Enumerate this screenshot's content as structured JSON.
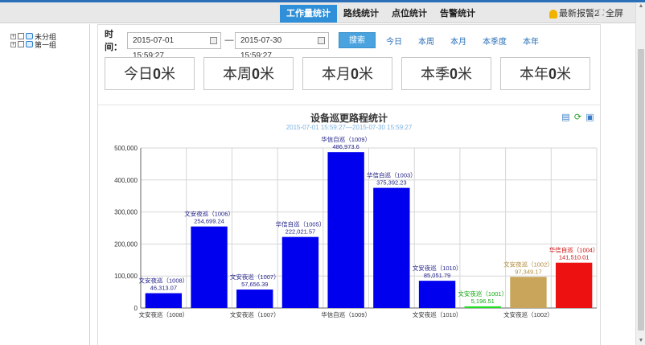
{
  "header": {
    "tabs": [
      {
        "label": "工作量统计",
        "active": true
      },
      {
        "label": "路线统计",
        "active": false
      },
      {
        "label": "点位统计",
        "active": false
      },
      {
        "label": "告警统计",
        "active": false
      }
    ],
    "alert_label": "最新报警2",
    "fullscreen_label": "全屏"
  },
  "sidebar": {
    "groups": [
      {
        "label": "未分组",
        "expander": "+"
      },
      {
        "label": "第一组",
        "expander": "+"
      }
    ]
  },
  "filter": {
    "time_label": "时间：",
    "start": "2015-07-01 15:59:27",
    "end": "2015-07-30 15:59:27",
    "dash": "—",
    "search_label": "搜索",
    "quick_links": [
      "今日",
      "本周",
      "本月",
      "本季度",
      "本年"
    ]
  },
  "stats": [
    {
      "prefix": "今日",
      "value": "0",
      "unit": "米"
    },
    {
      "prefix": "本周",
      "value": "0",
      "unit": "米"
    },
    {
      "prefix": "本月",
      "value": "0",
      "unit": "米"
    },
    {
      "prefix": "本季",
      "value": "0",
      "unit": "米"
    },
    {
      "prefix": "本年",
      "value": "0",
      "unit": "米"
    }
  ],
  "icons": {
    "doc": "document-icon",
    "refresh": "refresh-icon",
    "save": "save-icon"
  },
  "chart_data": {
    "type": "bar",
    "title": "设备巡更路程统计",
    "subtitle": "2015-07-01 15:59:27—2015-07-30 15:59:27",
    "ylim": [
      0,
      500000
    ],
    "yticks": [
      "0",
      "100,000",
      "200,000",
      "300,000",
      "400,000",
      "500,000"
    ],
    "ytick_values": [
      0,
      100000,
      200000,
      300000,
      400000,
      500000
    ],
    "categories": [
      "文安夜巡（1008）",
      "文安夜巡（1006）",
      "文安夜巡（1007）",
      "华信自巡（1005）",
      "华信自巡（1009）",
      "华信自巡（1003）",
      "文安夜巡（1010）",
      "文安夜巡（1001）",
      "文安夜巡（1002）",
      "华信自巡（1004）"
    ],
    "values": [
      46313.07,
      254699.24,
      57656.39,
      222021.57,
      486973.6,
      375392.23,
      85051.79,
      5196.51,
      97349.17,
      141510.01
    ],
    "value_labels": [
      "46,313.07",
      "254,699.24",
      "57,656.39",
      "222,021.57",
      "486,973.6",
      "375,392.23",
      "85,051.79",
      "5,196.51",
      "97,349.17",
      "141,510.01"
    ],
    "colors": [
      "#0000ee",
      "#0000ee",
      "#0000ee",
      "#0000ee",
      "#0000ee",
      "#0000ee",
      "#0000ee",
      "#22dd22",
      "#c8a55a",
      "#ee1111"
    ],
    "label_colors": [
      "#222288",
      "#222288",
      "#222288",
      "#222288",
      "#222288",
      "#222288",
      "#222288",
      "#11aa11",
      "#b08a3a",
      "#cc1111"
    ],
    "xtick_labels": [
      "文安夜巡（1008）",
      "",
      "文安夜巡（1007）",
      "",
      "华信自巡（1009）",
      "",
      "文安夜巡（1010）",
      "",
      "文安夜巡（1002）",
      ""
    ],
    "grid": true,
    "legend": "none"
  }
}
